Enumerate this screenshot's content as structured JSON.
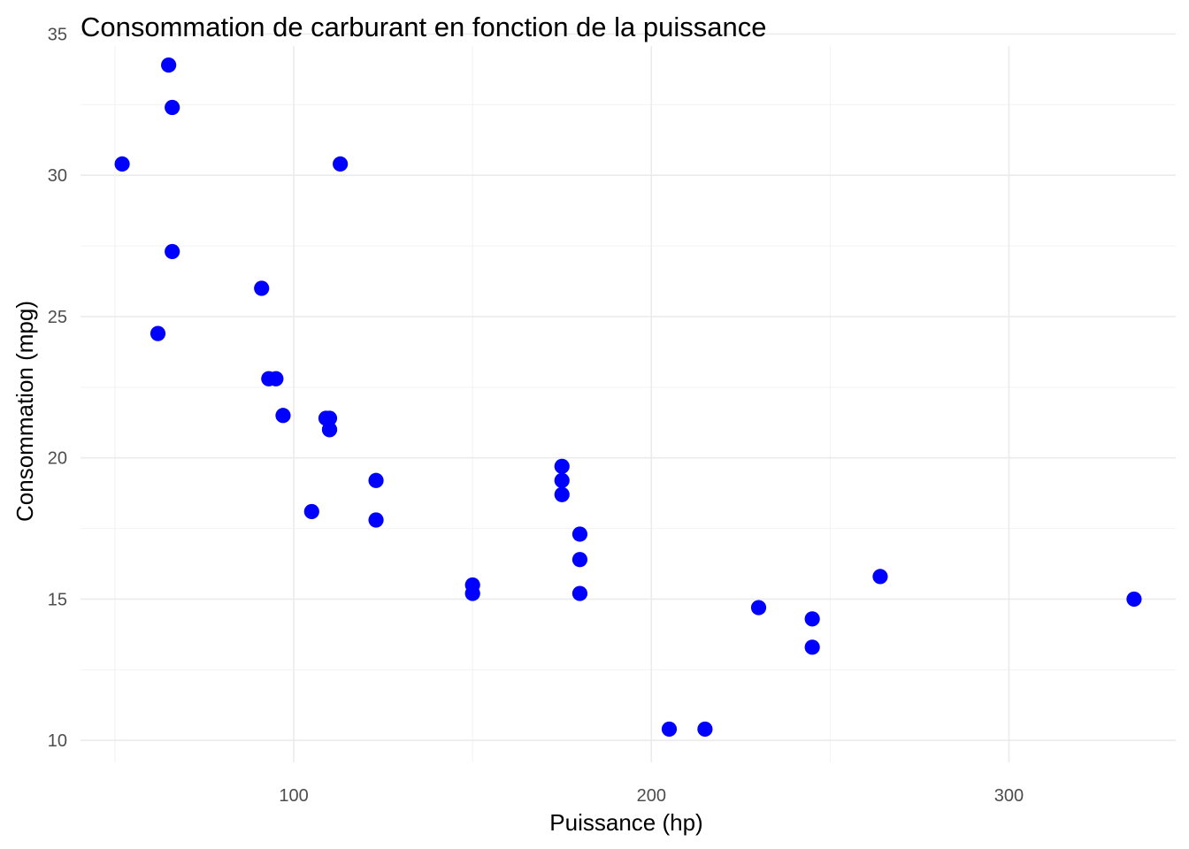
{
  "chart_data": {
    "type": "scatter",
    "title": "Consommation de carburant en fonction de la puissance",
    "xlabel": "Puissance (hp)",
    "ylabel": "Consommation (mpg)",
    "xlim": [
      40.35,
      346.65
    ],
    "ylim": [
      9.225,
      34.575
    ],
    "x_major_ticks": [
      100,
      200,
      300
    ],
    "x_minor_ticks": [
      50,
      150,
      250
    ],
    "y_major_ticks": [
      10,
      15,
      20,
      25,
      30,
      35
    ],
    "y_minor_ticks": [
      12.5,
      17.5,
      22.5,
      27.5,
      32.5
    ],
    "x_tick_labels": [
      "100",
      "200",
      "300"
    ],
    "y_tick_labels": [
      "10",
      "15",
      "20",
      "25",
      "30",
      "35"
    ],
    "grid": true,
    "legend": "none",
    "point_color": "#0000FF",
    "points": [
      {
        "x": 110,
        "y": 21.0
      },
      {
        "x": 110,
        "y": 21.0
      },
      {
        "x": 93,
        "y": 22.8
      },
      {
        "x": 110,
        "y": 21.4
      },
      {
        "x": 175,
        "y": 18.7
      },
      {
        "x": 105,
        "y": 18.1
      },
      {
        "x": 245,
        "y": 14.3
      },
      {
        "x": 62,
        "y": 24.4
      },
      {
        "x": 95,
        "y": 22.8
      },
      {
        "x": 123,
        "y": 19.2
      },
      {
        "x": 123,
        "y": 17.8
      },
      {
        "x": 180,
        "y": 16.4
      },
      {
        "x": 180,
        "y": 17.3
      },
      {
        "x": 180,
        "y": 15.2
      },
      {
        "x": 205,
        "y": 10.4
      },
      {
        "x": 215,
        "y": 10.4
      },
      {
        "x": 230,
        "y": 14.7
      },
      {
        "x": 66,
        "y": 32.4
      },
      {
        "x": 52,
        "y": 30.4
      },
      {
        "x": 65,
        "y": 33.9
      },
      {
        "x": 97,
        "y": 21.5
      },
      {
        "x": 150,
        "y": 15.5
      },
      {
        "x": 150,
        "y": 15.2
      },
      {
        "x": 245,
        "y": 13.3
      },
      {
        "x": 175,
        "y": 19.2
      },
      {
        "x": 66,
        "y": 27.3
      },
      {
        "x": 91,
        "y": 26.0
      },
      {
        "x": 113,
        "y": 30.4
      },
      {
        "x": 264,
        "y": 15.8
      },
      {
        "x": 175,
        "y": 19.7
      },
      {
        "x": 335,
        "y": 15.0
      },
      {
        "x": 109,
        "y": 21.4
      }
    ]
  }
}
